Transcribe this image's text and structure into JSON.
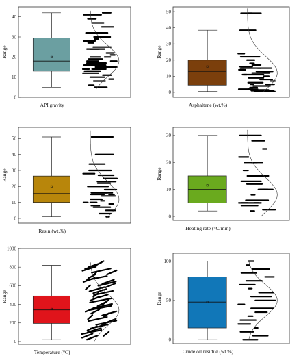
{
  "chart_data": [
    {
      "type": "box",
      "xlabel": "API gravity",
      "ylabel": "Range",
      "ylim": [
        0,
        45
      ],
      "yticks": [
        0,
        10,
        20,
        30,
        40
      ],
      "box": {
        "min": 5,
        "q1": 13,
        "median": 18,
        "q3": 29.5,
        "max": 42,
        "mean": 20
      },
      "box_color": "#6b9fa1",
      "points": [
        5,
        6,
        8,
        9,
        10,
        11,
        12,
        13,
        13,
        14,
        14,
        15,
        16,
        16,
        17,
        17,
        18,
        18,
        19,
        20,
        20,
        21,
        22,
        24,
        24,
        25,
        27,
        28,
        29,
        30,
        32,
        32,
        35,
        37,
        39,
        41,
        42
      ],
      "kde_range": [
        4,
        43
      ],
      "kde_peak": 18
    },
    {
      "type": "box",
      "xlabel": "Asphaltene (wt.%)",
      "ylabel": "Range",
      "ylim": [
        -3,
        53
      ],
      "yticks": [
        0,
        10,
        20,
        30,
        40,
        50
      ],
      "box": {
        "min": 0.5,
        "q1": 4.5,
        "median": 13,
        "q3": 20,
        "max": 38.5,
        "mean": 16
      },
      "box_color": "#7b3f0c",
      "points": [
        0.5,
        1,
        1.5,
        2,
        2,
        3,
        4,
        5,
        5,
        6,
        7,
        8,
        9,
        10,
        11,
        11,
        12,
        13,
        13,
        14,
        14,
        15,
        15,
        16,
        17,
        18,
        20,
        22,
        24,
        38.5,
        49,
        49
      ],
      "kde_range": [
        0,
        52
      ],
      "kde_peak": 12
    },
    {
      "type": "box",
      "xlabel": "Resin (wt.%)",
      "ylabel": "Range",
      "ylim": [
        -3,
        57
      ],
      "yticks": [
        0,
        10,
        20,
        30,
        40,
        50
      ],
      "box": {
        "min": 1,
        "q1": 10,
        "median": 15.5,
        "q3": 26.5,
        "max": 51,
        "mean": 20
      },
      "box_color": "#b8860b",
      "points": [
        1,
        3,
        5,
        7,
        8,
        9,
        10,
        10,
        11,
        12,
        14,
        15,
        15,
        16,
        16,
        18,
        20,
        22,
        23,
        25,
        27,
        28,
        30,
        34,
        40,
        51,
        51
      ],
      "kde_range": [
        0,
        55
      ],
      "kde_peak": 12
    },
    {
      "type": "box",
      "xlabel": "Heating rate (°C/min)",
      "ylabel": "Range",
      "ylim": [
        -1.5,
        33
      ],
      "yticks": [
        0,
        10,
        20,
        30
      ],
      "box": {
        "min": 2,
        "q1": 5,
        "median": 10,
        "q3": 15,
        "max": 30,
        "mean": 11.5
      },
      "box_color": "#6aaa1e",
      "points": [
        2,
        2.5,
        4,
        5,
        5,
        5,
        6,
        8,
        10,
        10,
        10,
        12,
        13,
        15,
        15,
        17,
        20,
        20,
        22,
        25,
        28,
        30
      ],
      "kde_range": [
        0,
        32
      ],
      "kde_peak": 8
    },
    {
      "type": "box",
      "xlabel": "Temperature (°C)",
      "ylabel": "Range",
      "ylim": [
        -30,
        1000
      ],
      "yticks": [
        0,
        200,
        400,
        600,
        800,
        1000
      ],
      "box": {
        "min": 20,
        "q1": 195,
        "median": 340,
        "q3": 490,
        "max": 820,
        "mean": 350
      },
      "box_color": "#e0141b",
      "points": [
        20,
        40,
        60,
        80,
        100,
        120,
        140,
        160,
        180,
        200,
        220,
        240,
        260,
        280,
        300,
        320,
        340,
        360,
        380,
        400,
        420,
        440,
        460,
        480,
        500,
        520,
        540,
        560,
        580,
        600,
        620,
        640,
        660,
        680,
        700,
        720,
        740,
        760,
        780,
        800,
        820
      ],
      "kde_range": [
        0,
        850
      ],
      "kde_peak": 340
    },
    {
      "type": "box",
      "xlabel": "Crude oil residue (wt.%)",
      "ylabel": "Range",
      "ylim": [
        -5,
        110
      ],
      "yticks": [
        0,
        50,
        100
      ],
      "box": {
        "min": 0,
        "q1": 15,
        "median": 48,
        "q3": 80,
        "max": 100,
        "mean": 48
      },
      "box_color": "#1177b8",
      "points": [
        0,
        5,
        10,
        15,
        20,
        25,
        30,
        35,
        40,
        45,
        50,
        55,
        60,
        65,
        70,
        75,
        80,
        85,
        90,
        95,
        100
      ],
      "kde_range": [
        0,
        100
      ],
      "kde_peak": 50
    }
  ]
}
